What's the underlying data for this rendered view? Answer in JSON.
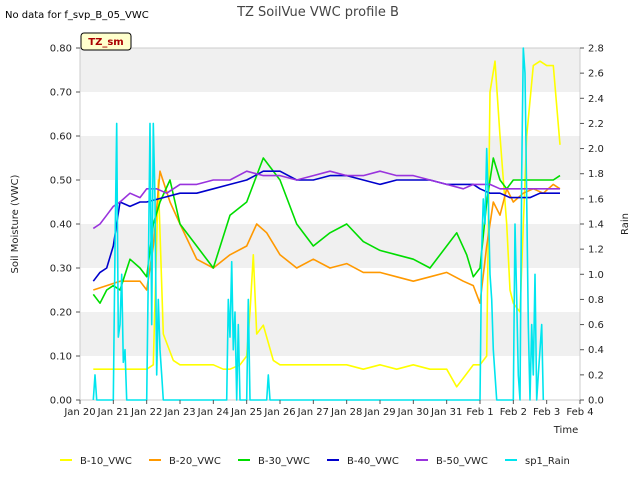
{
  "note": "No data for f_svp_B_05_VWC",
  "badge": "TZ_sm",
  "chart_data": {
    "type": "line",
    "title": "TZ SoilVue VWC profile B",
    "xlabel": "Time",
    "ylabel": "Soil Moisture (VWC)",
    "y2label": "Rain",
    "xlim": [
      0,
      15
    ],
    "ylim": [
      0,
      0.8
    ],
    "y2lim": [
      0,
      2.8
    ],
    "x_ticks": [
      {
        "v": 0,
        "label": "Jan 20"
      },
      {
        "v": 1,
        "label": "Jan 21"
      },
      {
        "v": 2,
        "label": "Jan 22"
      },
      {
        "v": 3,
        "label": "Jan 23"
      },
      {
        "v": 4,
        "label": "Jan 24"
      },
      {
        "v": 5,
        "label": "Jan 25"
      },
      {
        "v": 6,
        "label": "Jan 26"
      },
      {
        "v": 7,
        "label": "Jan 27"
      },
      {
        "v": 8,
        "label": "Jan 28"
      },
      {
        "v": 9,
        "label": "Jan 29"
      },
      {
        "v": 10,
        "label": "Jan 30"
      },
      {
        "v": 11,
        "label": "Jan 31"
      },
      {
        "v": 12,
        "label": "Feb 1"
      },
      {
        "v": 13,
        "label": "Feb 2"
      },
      {
        "v": 14,
        "label": "Feb 3"
      },
      {
        "v": 15,
        "label": "Feb 4"
      }
    ],
    "y_ticks": [
      {
        "v": 0,
        "label": "0.00"
      },
      {
        "v": 0.1,
        "label": "0.10"
      },
      {
        "v": 0.2,
        "label": "0.20"
      },
      {
        "v": 0.3,
        "label": "0.30"
      },
      {
        "v": 0.4,
        "label": "0.40"
      },
      {
        "v": 0.5,
        "label": "0.50"
      },
      {
        "v": 0.6,
        "label": "0.60"
      },
      {
        "v": 0.7,
        "label": "0.70"
      },
      {
        "v": 0.8,
        "label": "0.80"
      }
    ],
    "y2_ticks": [
      {
        "v": 0,
        "label": "0.0"
      },
      {
        "v": 0.2,
        "label": "0.2"
      },
      {
        "v": 0.4,
        "label": "0.4"
      },
      {
        "v": 0.6,
        "label": "0.6"
      },
      {
        "v": 0.8,
        "label": "0.8"
      },
      {
        "v": 1.0,
        "label": "1.0"
      },
      {
        "v": 1.2,
        "label": "1.2"
      },
      {
        "v": 1.4,
        "label": "1.4"
      },
      {
        "v": 1.6,
        "label": "1.6"
      },
      {
        "v": 1.8,
        "label": "1.8"
      },
      {
        "v": 2.0,
        "label": "2.0"
      },
      {
        "v": 2.2,
        "label": "2.2"
      },
      {
        "v": 2.4,
        "label": "2.4"
      },
      {
        "v": 2.6,
        "label": "2.6"
      },
      {
        "v": 2.8,
        "label": "2.8"
      }
    ],
    "grid": "horizontal bands",
    "legend": "bottom",
    "series": [
      {
        "name": "B-10_VWC",
        "color": "#ffff00",
        "axis": "left",
        "x": [
          0.4,
          1.0,
          1.5,
          2.0,
          2.2,
          2.35,
          2.5,
          2.8,
          3.0,
          3.5,
          4.0,
          4.3,
          4.5,
          4.8,
          5.0,
          5.1,
          5.2,
          5.3,
          5.5,
          5.8,
          6.0,
          6.5,
          7.0,
          7.5,
          8.0,
          8.5,
          9.0,
          9.5,
          10.0,
          10.5,
          11.0,
          11.3,
          11.6,
          11.8,
          12.0,
          12.2,
          12.3,
          12.45,
          12.6,
          12.8,
          12.9,
          13.0,
          13.2,
          13.4,
          13.6,
          13.8,
          14.0,
          14.2,
          14.4
        ],
        "y": [
          0.07,
          0.07,
          0.07,
          0.07,
          0.08,
          0.5,
          0.15,
          0.09,
          0.08,
          0.08,
          0.08,
          0.07,
          0.07,
          0.08,
          0.1,
          0.2,
          0.33,
          0.15,
          0.17,
          0.09,
          0.08,
          0.08,
          0.08,
          0.08,
          0.08,
          0.07,
          0.08,
          0.07,
          0.08,
          0.07,
          0.07,
          0.03,
          0.06,
          0.08,
          0.08,
          0.1,
          0.7,
          0.77,
          0.6,
          0.4,
          0.25,
          0.22,
          0.2,
          0.6,
          0.76,
          0.77,
          0.76,
          0.76,
          0.58
        ]
      },
      {
        "name": "B-20_VWC",
        "color": "#ff9900",
        "axis": "left",
        "x": [
          0.4,
          0.8,
          1.2,
          1.5,
          1.8,
          2.0,
          2.2,
          2.4,
          2.7,
          3.0,
          3.5,
          4.0,
          4.5,
          5.0,
          5.3,
          5.6,
          6.0,
          6.5,
          7.0,
          7.5,
          8.0,
          8.5,
          9.0,
          9.5,
          10.0,
          10.5,
          11.0,
          11.5,
          11.8,
          12.0,
          12.2,
          12.4,
          12.6,
          12.8,
          13.0,
          13.3,
          13.6,
          13.9,
          14.2,
          14.4
        ],
        "y": [
          0.25,
          0.26,
          0.27,
          0.27,
          0.27,
          0.25,
          0.35,
          0.52,
          0.45,
          0.4,
          0.32,
          0.3,
          0.33,
          0.35,
          0.4,
          0.38,
          0.33,
          0.3,
          0.32,
          0.3,
          0.31,
          0.29,
          0.29,
          0.28,
          0.27,
          0.28,
          0.29,
          0.27,
          0.26,
          0.22,
          0.35,
          0.45,
          0.42,
          0.48,
          0.45,
          0.47,
          0.48,
          0.47,
          0.49,
          0.48
        ]
      },
      {
        "name": "B-30_VWC",
        "color": "#00dd00",
        "axis": "left",
        "x": [
          0.4,
          0.6,
          0.8,
          1.0,
          1.2,
          1.5,
          1.8,
          2.0,
          2.2,
          2.4,
          2.7,
          3.0,
          3.5,
          4.0,
          4.5,
          5.0,
          5.5,
          6.0,
          6.5,
          7.0,
          7.5,
          8.0,
          8.5,
          9.0,
          9.5,
          10.0,
          10.5,
          11.0,
          11.3,
          11.6,
          11.8,
          12.0,
          12.2,
          12.4,
          12.6,
          12.8,
          13.0,
          13.3,
          13.6,
          13.9,
          14.2,
          14.4
        ],
        "y": [
          0.24,
          0.22,
          0.25,
          0.26,
          0.25,
          0.32,
          0.3,
          0.28,
          0.4,
          0.45,
          0.5,
          0.4,
          0.35,
          0.3,
          0.42,
          0.45,
          0.55,
          0.5,
          0.4,
          0.35,
          0.38,
          0.4,
          0.36,
          0.34,
          0.33,
          0.32,
          0.3,
          0.35,
          0.38,
          0.33,
          0.28,
          0.3,
          0.45,
          0.55,
          0.5,
          0.48,
          0.5,
          0.5,
          0.5,
          0.5,
          0.5,
          0.51
        ]
      },
      {
        "name": "B-40_VWC",
        "color": "#0000cc",
        "axis": "left",
        "x": [
          0.4,
          0.6,
          0.8,
          1.0,
          1.2,
          1.5,
          1.8,
          2.0,
          2.5,
          3.0,
          3.5,
          4.0,
          4.5,
          5.0,
          5.5,
          6.0,
          6.5,
          7.0,
          7.5,
          8.0,
          8.5,
          9.0,
          9.5,
          10.0,
          10.5,
          11.0,
          11.5,
          11.8,
          12.0,
          12.3,
          12.6,
          12.9,
          13.2,
          13.5,
          13.8,
          14.1,
          14.4
        ],
        "y": [
          0.27,
          0.29,
          0.3,
          0.35,
          0.45,
          0.44,
          0.45,
          0.45,
          0.46,
          0.47,
          0.47,
          0.48,
          0.49,
          0.5,
          0.52,
          0.52,
          0.5,
          0.5,
          0.51,
          0.51,
          0.5,
          0.49,
          0.5,
          0.5,
          0.5,
          0.49,
          0.49,
          0.49,
          0.48,
          0.47,
          0.47,
          0.46,
          0.46,
          0.46,
          0.47,
          0.47,
          0.47
        ]
      },
      {
        "name": "B-50_VWC",
        "color": "#9933dd",
        "axis": "left",
        "x": [
          0.4,
          0.6,
          0.8,
          1.0,
          1.2,
          1.5,
          1.8,
          2.0,
          2.3,
          2.6,
          3.0,
          3.5,
          4.0,
          4.5,
          5.0,
          5.5,
          6.0,
          6.5,
          7.0,
          7.5,
          8.0,
          8.5,
          9.0,
          9.5,
          10.0,
          10.5,
          11.0,
          11.5,
          11.8,
          12.0,
          12.3,
          12.6,
          12.9,
          13.2,
          13.5,
          13.8,
          14.1,
          14.4
        ],
        "y": [
          0.39,
          0.4,
          0.42,
          0.44,
          0.45,
          0.47,
          0.46,
          0.48,
          0.48,
          0.47,
          0.49,
          0.49,
          0.5,
          0.5,
          0.52,
          0.51,
          0.51,
          0.5,
          0.51,
          0.52,
          0.51,
          0.51,
          0.52,
          0.51,
          0.51,
          0.5,
          0.49,
          0.48,
          0.49,
          0.49,
          0.49,
          0.48,
          0.48,
          0.48,
          0.48,
          0.48,
          0.48,
          0.48
        ]
      },
      {
        "name": "sp1_Rain",
        "color": "#00e5ee",
        "axis": "right",
        "x": [
          0.4,
          0.45,
          0.5,
          1.0,
          1.05,
          1.1,
          1.15,
          1.2,
          1.25,
          1.3,
          1.35,
          1.4,
          2.0,
          2.05,
          2.1,
          2.15,
          2.2,
          2.25,
          2.3,
          2.35,
          2.4,
          2.45,
          2.5,
          4.4,
          4.45,
          4.5,
          4.55,
          4.6,
          4.65,
          4.7,
          4.75,
          4.8,
          5.0,
          5.05,
          5.1,
          5.6,
          5.65,
          5.7,
          12.0,
          12.05,
          12.1,
          12.15,
          12.2,
          12.25,
          12.3,
          12.35,
          12.4,
          12.45,
          12.5,
          13.0,
          13.05,
          13.1,
          13.15,
          13.2,
          13.25,
          13.3,
          13.35,
          13.4,
          13.45,
          13.5,
          13.55,
          13.6,
          13.65,
          13.7,
          13.75,
          13.8,
          13.85,
          13.9
        ],
        "y": [
          0,
          0.2,
          0,
          0,
          1.2,
          2.2,
          0.5,
          0.6,
          1.0,
          0.3,
          0.4,
          0,
          0,
          1.0,
          2.2,
          0.6,
          2.2,
          1.6,
          0.2,
          0.8,
          0.4,
          0.2,
          0,
          0,
          0.8,
          0.5,
          1.1,
          0.4,
          0.7,
          0,
          0.6,
          0,
          0,
          0.8,
          0,
          0,
          0.2,
          0,
          0,
          1.2,
          1.6,
          1.4,
          2.0,
          1.6,
          1.0,
          0.8,
          0.4,
          0.2,
          0,
          0,
          1.4,
          0.8,
          0.2,
          0,
          1.8,
          2.8,
          2.6,
          1.6,
          0.6,
          0,
          0.6,
          0.2,
          1.0,
          0,
          0.2,
          0.4,
          0.6,
          0
        ]
      }
    ]
  }
}
